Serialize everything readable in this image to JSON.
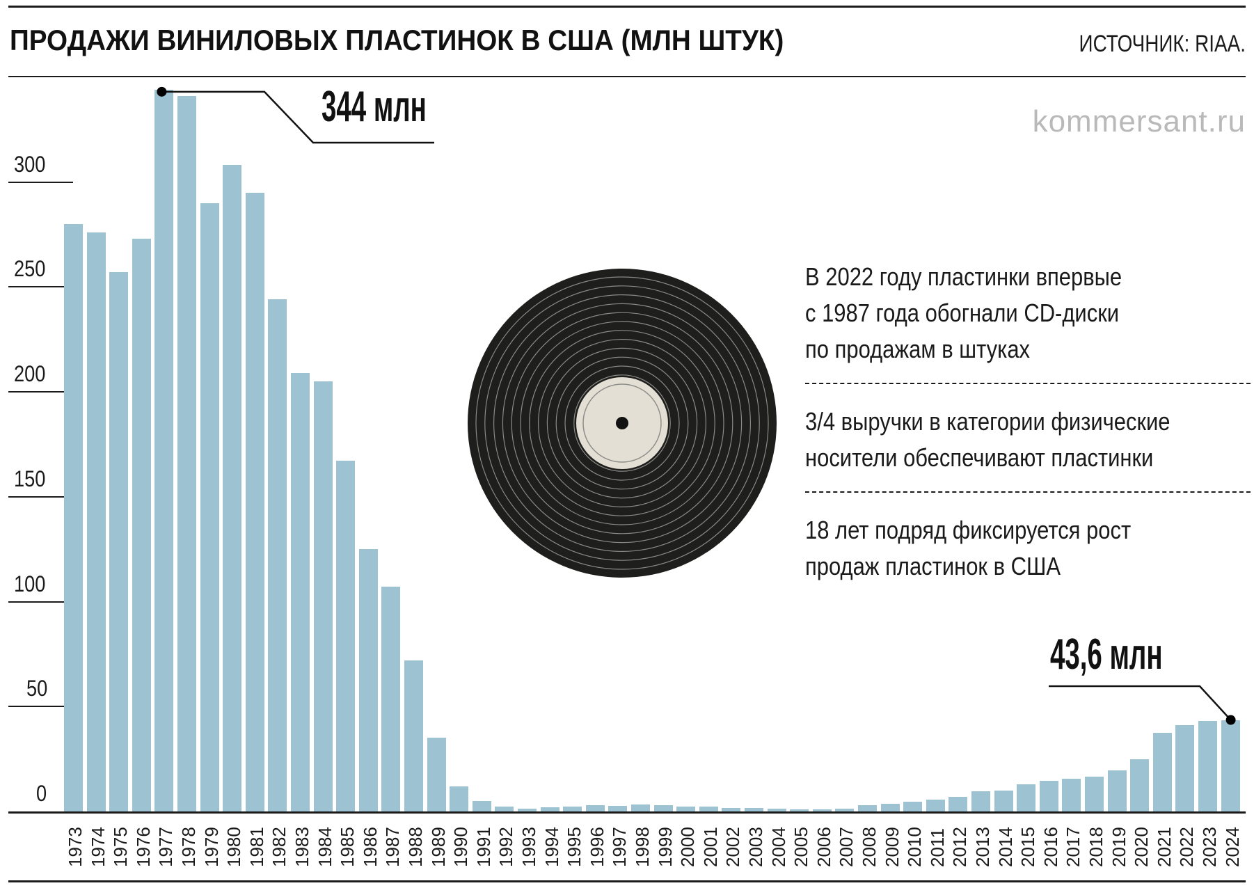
{
  "header": {
    "title_main": "ПРОДАЖИ ВИНИЛОВЫХ ПЛАСТИНОК В США",
    "title_unit": "(МЛН ШТУК)",
    "source": "ИСТОЧНИК: RIAA.",
    "watermark": "kommersant.ru"
  },
  "annotations": {
    "peak_label": "344 млн",
    "latest_label": "43,6 млн"
  },
  "facts": [
    "В 2022 году пластинки впервые\nс 1987 года обогнали CD-диски\nпо продажам в штуках",
    "3/4 выручки в категории физические\nносители обеспечивают пластинки",
    "18 лет подряд фиксируется рост\nпродаж пластинок в США"
  ],
  "colors": {
    "bar": "#9dc2d1",
    "record": "#1e1e1c",
    "label": "#e3dfd5",
    "text": "#1a1a1a",
    "watermark": "#b9b9b9"
  },
  "chart_data": {
    "type": "bar",
    "title": "Продажи виниловых пластинок в США (млн штук)",
    "xlabel": "",
    "ylabel": "млн штук",
    "ylim": [
      0,
      350
    ],
    "yticks": [
      0,
      50,
      100,
      150,
      200,
      250,
      300
    ],
    "grid": false,
    "legend": null,
    "categories": [
      "1973",
      "1974",
      "1975",
      "1976",
      "1977",
      "1978",
      "1979",
      "1980",
      "1981",
      "1982",
      "1983",
      "1984",
      "1985",
      "1986",
      "1987",
      "1988",
      "1989",
      "1990",
      "1991",
      "1992",
      "1993",
      "1994",
      "1995",
      "1996",
      "1997",
      "1998",
      "1999",
      "2000",
      "2001",
      "2002",
      "2003",
      "2004",
      "2005",
      "2006",
      "2007",
      "2008",
      "2009",
      "2010",
      "2011",
      "2012",
      "2013",
      "2014",
      "2015",
      "2016",
      "2017",
      "2018",
      "2019",
      "2020",
      "2021",
      "2022",
      "2023",
      "2024"
    ],
    "values": [
      280,
      276,
      257,
      273,
      344,
      341,
      290,
      308,
      295,
      244,
      209,
      205,
      167,
      125,
      107,
      72,
      35,
      12,
      5,
      2.3,
      1.2,
      1.9,
      2.2,
      2.9,
      2.7,
      3.4,
      2.9,
      2.2,
      2.3,
      1.7,
      1.5,
      1.4,
      0.9,
      1.0,
      1.3,
      2.9,
      3.5,
      4.5,
      5.5,
      7,
      9.5,
      10,
      13,
      14.5,
      15.5,
      16.5,
      19.5,
      25,
      37.5,
      41,
      43,
      43.6
    ],
    "annotations": [
      {
        "x": "1977",
        "value": 344,
        "text": "344 млн"
      },
      {
        "x": "2024",
        "value": 43.6,
        "text": "43,6 млн"
      }
    ]
  }
}
